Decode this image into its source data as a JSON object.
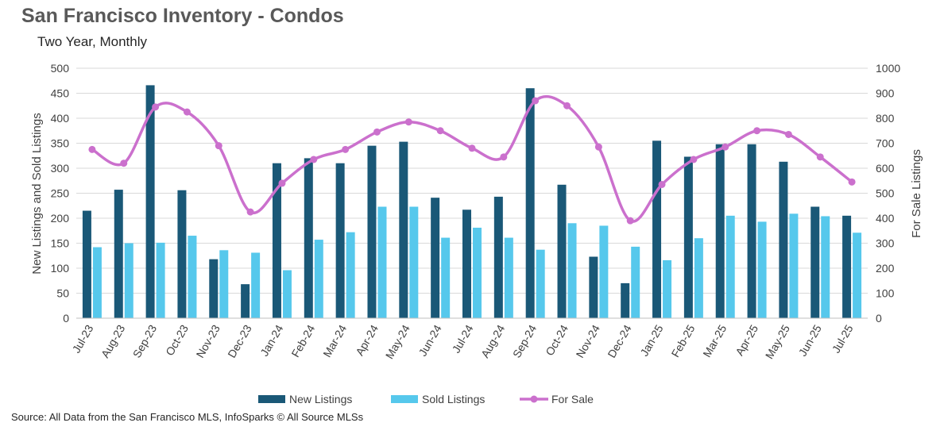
{
  "title": "San Francisco Inventory - Condos",
  "subtitle": "Two Year, Monthly",
  "source": "Source: All Data from the San Francisco MLS, InfoSparks © All Source MLSs",
  "colors": {
    "new": "#1a5877",
    "sold": "#56c8ec",
    "forsale": "#cb70cd",
    "axis": "#595959",
    "grid": "#d9d9d9"
  },
  "chart_data": {
    "type": "bar",
    "categories": [
      "Jul-23",
      "Aug-23",
      "Sep-23",
      "Oct-23",
      "Nov-23",
      "Dec-23",
      "Jan-24",
      "Feb-24",
      "Mar-24",
      "Apr-24",
      "May-24",
      "Jun-24",
      "Jul-24",
      "Aug-24",
      "Sep-24",
      "Oct-24",
      "Nov-24",
      "Dec-24",
      "Jan-25",
      "Feb-25",
      "Mar-25",
      "Apr-25",
      "May-25",
      "Jun-25",
      "Jul-25"
    ],
    "series": [
      {
        "name": "New Listings",
        "type": "bar",
        "axis": "left",
        "values": [
          215,
          257,
          466,
          256,
          118,
          68,
          310,
          320,
          310,
          345,
          353,
          241,
          217,
          243,
          460,
          267,
          123,
          70,
          355,
          323,
          348,
          348,
          313,
          223,
          205
        ]
      },
      {
        "name": "Sold Listings",
        "type": "bar",
        "axis": "left",
        "values": [
          142,
          150,
          151,
          165,
          136,
          131,
          96,
          157,
          172,
          223,
          223,
          161,
          181,
          161,
          137,
          190,
          185,
          143,
          116,
          160,
          205,
          193,
          209,
          204,
          171
        ]
      },
      {
        "name": "For Sale",
        "type": "line",
        "axis": "right",
        "values": [
          675,
          620,
          845,
          825,
          690,
          425,
          540,
          635,
          675,
          745,
          785,
          750,
          680,
          645,
          870,
          850,
          685,
          390,
          535,
          635,
          685,
          750,
          735,
          645,
          545
        ]
      }
    ],
    "y_left": {
      "label": "New Listings and Sold Listings",
      "min": 0,
      "max": 500,
      "ticks": [
        0,
        50,
        100,
        150,
        200,
        250,
        300,
        350,
        400,
        450,
        500
      ]
    },
    "y_right": {
      "label": "For Sale Listings",
      "min": 0,
      "max": 1000,
      "ticks": [
        0,
        100,
        200,
        300,
        400,
        500,
        600,
        700,
        800,
        900,
        1000
      ]
    },
    "legend": {
      "position": "bottom",
      "entries": [
        "New Listings",
        "Sold Listings",
        "For Sale"
      ]
    }
  }
}
